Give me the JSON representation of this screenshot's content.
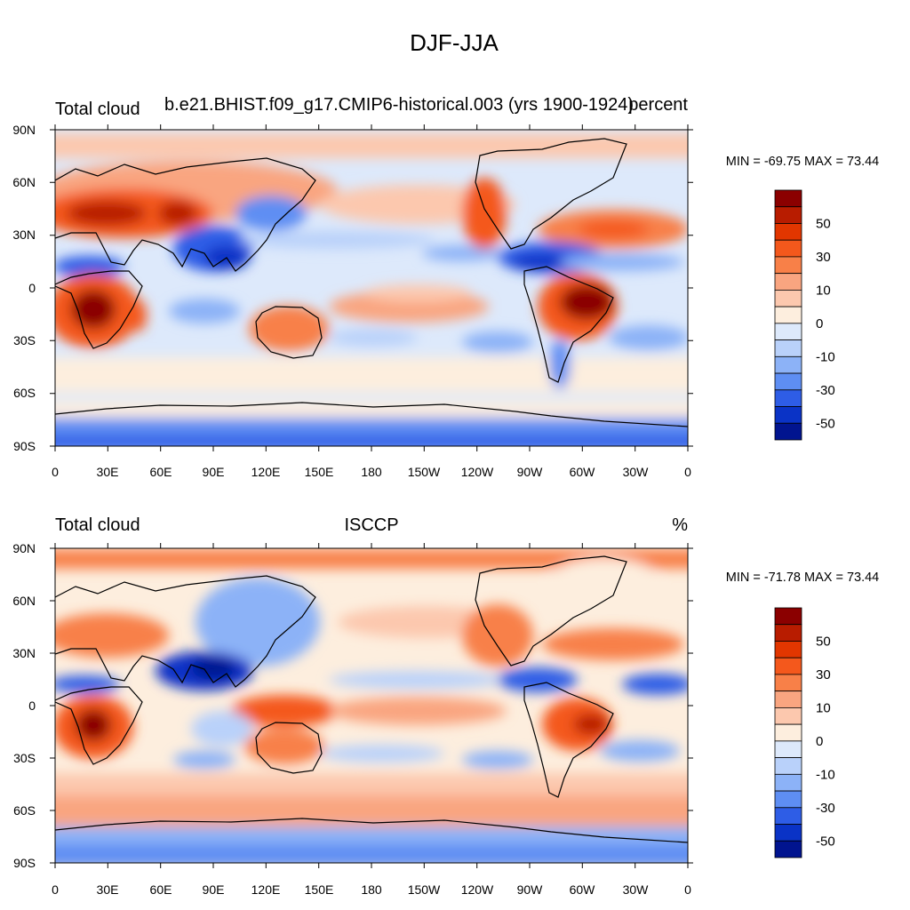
{
  "figure": {
    "title": "DJF-JJA"
  },
  "panels": [
    {
      "id": "model",
      "left_title": "Total cloud",
      "center_title": "b.e21.BHIST.f09_g17.CMIP6-historical.003 (yrs 1900-1924)",
      "right_title": "percent",
      "stats": "MIN = -69.75 MAX =  73.44"
    },
    {
      "id": "obs",
      "left_title": "Total cloud",
      "center_title": "ISCCP",
      "right_title": "%",
      "stats": "MIN = -71.78 MAX =  73.44"
    }
  ],
  "axes": {
    "lat_ticks": [
      "90N",
      "60N",
      "30N",
      "0",
      "30S",
      "60S",
      "90S"
    ],
    "lon_ticks": [
      "0",
      "30E",
      "60E",
      "90E",
      "120E",
      "150E",
      "180",
      "150W",
      "120W",
      "90W",
      "60W",
      "30W",
      "0"
    ]
  },
  "colorbar": {
    "labels": [
      "50",
      "30",
      "10",
      "0",
      "-10",
      "-30",
      "-50"
    ],
    "colors": [
      "#8b0000",
      "#b81c00",
      "#e23600",
      "#f4581c",
      "#f88048",
      "#f9a580",
      "#fcc8ae",
      "#fdeede",
      "#dde9fb",
      "#b9d1fa",
      "#8cb2f7",
      "#5e8ef3",
      "#2e5de6",
      "#0a33c6",
      "#01148f"
    ]
  },
  "chart_data": [
    {
      "type": "map",
      "title": "Total cloud",
      "subtitle": "b.e21.BHIST.f09_g17.CMIP6-historical.003 (yrs 1900-1924)",
      "units": "percent",
      "min": -69.75,
      "max": 73.44,
      "contour_levels": [
        -60,
        -50,
        -40,
        -30,
        -20,
        -10,
        -5,
        0,
        5,
        10,
        20,
        30,
        40,
        50,
        60
      ]
    },
    {
      "type": "map",
      "title": "Total cloud",
      "subtitle": "ISCCP",
      "units": "%",
      "min": -71.78,
      "max": 73.44,
      "contour_levels": [
        -60,
        -50,
        -40,
        -30,
        -20,
        -10,
        -5,
        0,
        5,
        10,
        20,
        30,
        40,
        50,
        60
      ]
    }
  ]
}
